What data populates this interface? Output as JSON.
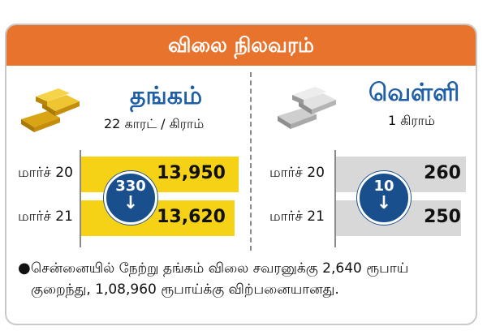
{
  "header": {
    "title": "விலை நிலவரம்"
  },
  "gold": {
    "title": "தங்கம்",
    "unit": "22 காரட் / கிராம்",
    "change": "330",
    "icon": "gold-bars-icon",
    "color": "#f6d217"
  },
  "silver": {
    "title": "வெள்ளி",
    "unit": "1 கிராம்",
    "change": "10",
    "icon": "silver-bars-icon",
    "color": "#d8d8d8"
  },
  "chart_data": [
    {
      "type": "bar",
      "categories": [
        "மார்ச் 20",
        "மார்ச் 21"
      ],
      "values": [
        13950,
        13620
      ],
      "labels": [
        "13,950",
        "13,620"
      ]
    },
    {
      "type": "bar",
      "categories": [
        "மார்ச் 20",
        "மார்ச் 21"
      ],
      "values": [
        260,
        250
      ],
      "labels": [
        "260",
        "250"
      ]
    }
  ],
  "note": {
    "text": "சென்னையில் நேற்று தங்கம் விலை சவரனுக்கு 2,640 ரூபாய் குறைந்து, 1,08,960 ரூபாய்க்கு விற்பனையானது."
  }
}
